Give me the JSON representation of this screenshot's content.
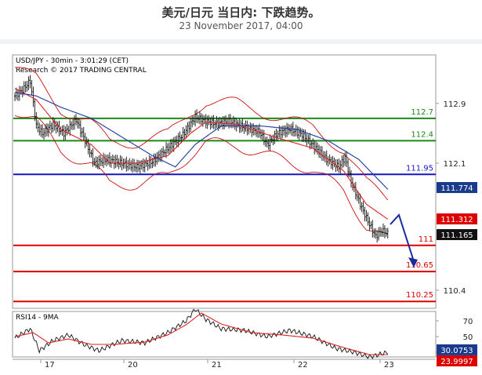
{
  "header": {
    "title": "美元/日元 当日内: 下跌趋势。",
    "subtitle": "23 November 2017, 04:00"
  },
  "chart_data": {
    "type": "candlestick",
    "info_line1": "USD/JPY - 30min - 3:01:29 (CET)",
    "info_line2": "Research © 2017 TRADING CENTRAL",
    "y_ticks": [
      {
        "v": 112.9,
        "label": "112.9"
      },
      {
        "v": 112.1,
        "label": "112.1"
      },
      {
        "v": 110.4,
        "label": "110.4"
      }
    ],
    "x_labels": [
      "17",
      "20",
      "21",
      "22",
      "23"
    ],
    "levels": [
      {
        "value": 112.7,
        "label": "112.7",
        "color": "#1a8a1a"
      },
      {
        "value": 112.4,
        "label": "112.4",
        "color": "#1a8a1a"
      },
      {
        "value": 111.95,
        "label": "111.95",
        "color": "#1515c0"
      },
      {
        "value": 111,
        "label": "111",
        "color": "#dd0000"
      },
      {
        "value": 110.65,
        "label": "110.65",
        "color": "#dd0000"
      },
      {
        "value": 110.25,
        "label": "110.25",
        "color": "#dd0000"
      }
    ],
    "price_boxes": [
      {
        "value": 111.774,
        "label": "111.774",
        "color": "#1a3a8c"
      },
      {
        "value": 111.312,
        "label": "111.312",
        "color": "#dd0000"
      },
      {
        "value": 111.165,
        "label": "111.165",
        "color": "#111111"
      }
    ],
    "close_anchors": [
      [
        0,
        113.0
      ],
      [
        5,
        113.08
      ],
      [
        10,
        113.2
      ],
      [
        14,
        112.6
      ],
      [
        18,
        112.5
      ],
      [
        25,
        112.62
      ],
      [
        32,
        112.5
      ],
      [
        40,
        112.68
      ],
      [
        45,
        112.45
      ],
      [
        52,
        112.1
      ],
      [
        60,
        112.15
      ],
      [
        70,
        112.1
      ],
      [
        80,
        112.05
      ],
      [
        90,
        112.12
      ],
      [
        100,
        112.3
      ],
      [
        110,
        112.48
      ],
      [
        118,
        112.72
      ],
      [
        125,
        112.66
      ],
      [
        132,
        112.63
      ],
      [
        140,
        112.66
      ],
      [
        150,
        112.58
      ],
      [
        160,
        112.52
      ],
      [
        165,
        112.35
      ],
      [
        172,
        112.5
      ],
      [
        180,
        112.56
      ],
      [
        188,
        112.48
      ],
      [
        196,
        112.32
      ],
      [
        204,
        112.15
      ],
      [
        212,
        112.05
      ],
      [
        216,
        112.18
      ],
      [
        220,
        111.85
      ],
      [
        226,
        111.55
      ],
      [
        232,
        111.28
      ],
      [
        236,
        111.12
      ],
      [
        240,
        111.2
      ],
      [
        244,
        111.16
      ]
    ],
    "ma_red_anchors": [
      [
        0,
        113.1
      ],
      [
        14,
        112.95
      ],
      [
        30,
        112.55
      ],
      [
        50,
        112.35
      ],
      [
        62,
        112.1
      ],
      [
        80,
        112.1
      ],
      [
        100,
        112.2
      ],
      [
        115,
        112.5
      ],
      [
        125,
        112.65
      ],
      [
        145,
        112.62
      ],
      [
        170,
        112.45
      ],
      [
        195,
        112.3
      ],
      [
        215,
        112.0
      ],
      [
        230,
        111.55
      ],
      [
        244,
        111.35
      ]
    ],
    "ma_blue_anchors": [
      [
        0,
        113.05
      ],
      [
        14,
        113.0
      ],
      [
        30,
        112.85
      ],
      [
        50,
        112.7
      ],
      [
        70,
        112.45
      ],
      [
        90,
        112.2
      ],
      [
        105,
        112.05
      ],
      [
        118,
        112.35
      ],
      [
        135,
        112.6
      ],
      [
        160,
        112.6
      ],
      [
        185,
        112.55
      ],
      [
        205,
        112.4
      ],
      [
        225,
        112.15
      ],
      [
        244,
        111.75
      ]
    ],
    "rsi": {
      "label": "RSI14 - 9MA",
      "y_ticks": [
        {
          "v": 70,
          "label": "70"
        },
        {
          "v": 50,
          "label": "50"
        },
        {
          "v": 30,
          "label": "30"
        }
      ],
      "boxes": [
        {
          "value": 30.0753,
          "label": "30.0753",
          "color": "#1a3a8c"
        },
        {
          "value": 23.9997,
          "label": "23.9997",
          "color": "#dd0000"
        }
      ],
      "rsi_anchors": [
        [
          0,
          48
        ],
        [
          10,
          60
        ],
        [
          16,
          32
        ],
        [
          25,
          45
        ],
        [
          35,
          52
        ],
        [
          45,
          40
        ],
        [
          55,
          32
        ],
        [
          70,
          45
        ],
        [
          85,
          42
        ],
        [
          100,
          55
        ],
        [
          112,
          70
        ],
        [
          118,
          85
        ],
        [
          125,
          72
        ],
        [
          135,
          60
        ],
        [
          150,
          58
        ],
        [
          165,
          50
        ],
        [
          180,
          58
        ],
        [
          195,
          50
        ],
        [
          210,
          35
        ],
        [
          222,
          30
        ],
        [
          232,
          24
        ],
        [
          244,
          30
        ]
      ],
      "ma_anchors": [
        [
          0,
          50
        ],
        [
          12,
          55
        ],
        [
          22,
          42
        ],
        [
          35,
          47
        ],
        [
          50,
          40
        ],
        [
          65,
          40
        ],
        [
          85,
          43
        ],
        [
          100,
          52
        ],
        [
          112,
          65
        ],
        [
          122,
          80
        ],
        [
          135,
          66
        ],
        [
          155,
          55
        ],
        [
          175,
          52
        ],
        [
          195,
          48
        ],
        [
          215,
          36
        ],
        [
          232,
          27
        ],
        [
          244,
          27
        ]
      ]
    }
  }
}
